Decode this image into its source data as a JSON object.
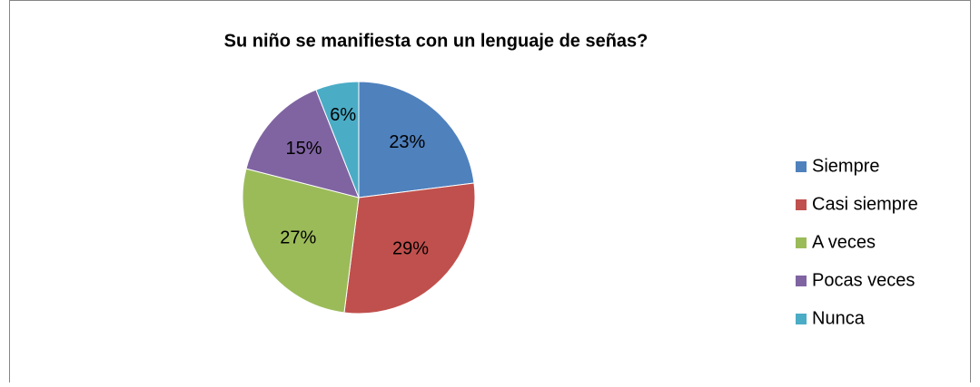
{
  "chart_data": {
    "type": "pie",
    "title": "Su niño se manifiesta con un lenguaje de señas?",
    "categories": [
      "Siempre",
      "Casi siempre",
      "A veces",
      "Pocas veces",
      "Nunca"
    ],
    "values": [
      23,
      29,
      27,
      15,
      6
    ],
    "value_labels": [
      "23%",
      "29%",
      "27%",
      "15%",
      "6%"
    ],
    "colors": [
      "#4f81bd",
      "#c0504d",
      "#9bbb59",
      "#8064a2",
      "#4bacc6"
    ],
    "legend": "right"
  }
}
